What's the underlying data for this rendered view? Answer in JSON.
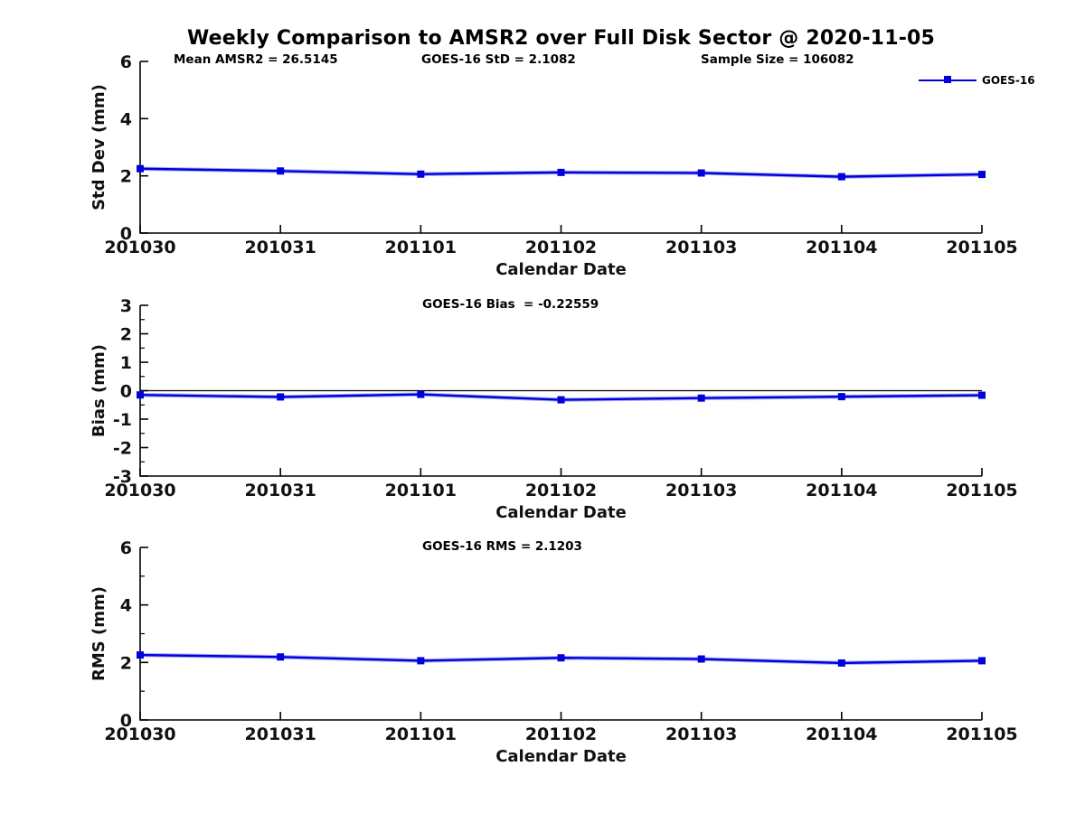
{
  "figure": {
    "title": "Weekly Comparison to AMSR2 over Full Disk Sector @ 2020-11-05"
  },
  "colors": {
    "series": "#0000dd",
    "axis": "#000000",
    "text": "#111111",
    "background": "#ffffff"
  },
  "chart_data": [
    {
      "type": "line",
      "xlabel": "Calendar Date",
      "ylabel": "Std Dev (mm)",
      "categories": [
        "201030",
        "201031",
        "201101",
        "201102",
        "201103",
        "201104",
        "201105"
      ],
      "ylim": [
        0,
        6
      ],
      "yticks": [
        0,
        2,
        4,
        6
      ],
      "yticks_minor": [],
      "zero_line": false,
      "grid": false,
      "legend_position": "top-right-outside",
      "annotations": [
        "Mean AMSR2 = 26.5145",
        "GOES-16 StD = 2.1082",
        "Sample Size = 106082"
      ],
      "series": [
        {
          "name": "GOES-16",
          "color": "#0000dd",
          "marker": "square",
          "values": [
            2.25,
            2.17,
            2.06,
            2.12,
            2.1,
            1.97,
            2.05
          ]
        }
      ]
    },
    {
      "type": "line",
      "xlabel": "Calendar Date",
      "ylabel": "Bias (mm)",
      "categories": [
        "201030",
        "201031",
        "201101",
        "201102",
        "201103",
        "201104",
        "201105"
      ],
      "ylim": [
        -3,
        3
      ],
      "yticks": [
        -3,
        -2,
        -1,
        0,
        1,
        2,
        3
      ],
      "yticks_minor": [
        -2.5,
        -1.5,
        -0.5,
        0.5,
        1.5,
        2.5
      ],
      "zero_line": true,
      "grid": false,
      "annotations": [
        "GOES-16 Bias  = -0.22559"
      ],
      "series": [
        {
          "name": "GOES-16",
          "color": "#0000dd",
          "marker": "square",
          "values": [
            -0.15,
            -0.22,
            -0.13,
            -0.32,
            -0.26,
            -0.21,
            -0.16
          ]
        }
      ]
    },
    {
      "type": "line",
      "xlabel": "Calendar Date",
      "ylabel": "RMS (mm)",
      "categories": [
        "201030",
        "201031",
        "201101",
        "201102",
        "201103",
        "201104",
        "201105"
      ],
      "ylim": [
        0,
        6
      ],
      "yticks": [
        0,
        2,
        4,
        6
      ],
      "yticks_minor": [
        1,
        3,
        5
      ],
      "zero_line": false,
      "grid": false,
      "annotations": [
        "GOES-16 RMS = 2.1203"
      ],
      "series": [
        {
          "name": "GOES-16",
          "color": "#0000dd",
          "marker": "square",
          "values": [
            2.26,
            2.19,
            2.06,
            2.16,
            2.12,
            1.98,
            2.06
          ]
        }
      ]
    }
  ]
}
